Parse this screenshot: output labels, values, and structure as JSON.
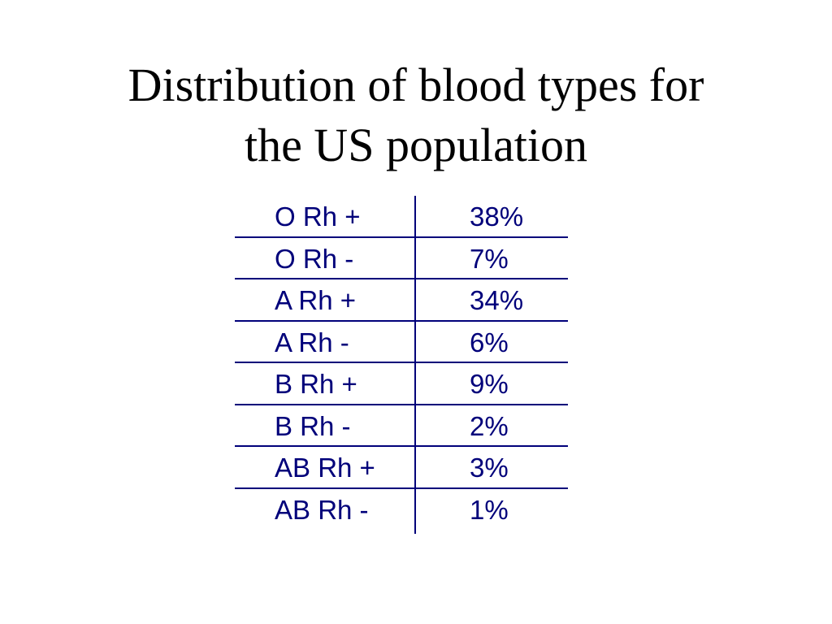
{
  "slide": {
    "title_line1": "Distribution of blood types for",
    "title_line2": "the US population"
  },
  "table": {
    "rows": [
      {
        "type": "O Rh +",
        "percent": "38%"
      },
      {
        "type": "O Rh -",
        "percent": "7%"
      },
      {
        "type": "A Rh +",
        "percent": "34%"
      },
      {
        "type": "A Rh -",
        "percent": "6%"
      },
      {
        "type": "B Rh +",
        "percent": "9%"
      },
      {
        "type": "B Rh -",
        "percent": "2%"
      },
      {
        "type": "AB Rh +",
        "percent": "3%"
      },
      {
        "type": "AB Rh -",
        "percent": "1%"
      }
    ]
  },
  "colors": {
    "title_text": "#000000",
    "table_text": "#00007a",
    "table_lines": "#00007a",
    "background": "#ffffff"
  }
}
